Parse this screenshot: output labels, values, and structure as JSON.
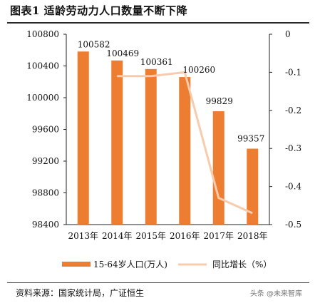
{
  "title": "图表1 适龄劳动力人口数量不断下降",
  "source": "资料来源：国家统计局，广证恒生",
  "watermark": "头条 @未来智库",
  "chart_data": {
    "type": "bar",
    "categories": [
      "2013年",
      "2014年",
      "2015年",
      "2016年",
      "2017年",
      "2018年"
    ],
    "series": [
      {
        "name": "15-64岁人口(万人)",
        "type": "bar",
        "axis": "left",
        "values": [
          100582,
          100469,
          100361,
          100260,
          99829,
          99357
        ]
      },
      {
        "name": "同比增长（%）",
        "type": "line",
        "axis": "right",
        "values": [
          null,
          -0.11,
          -0.11,
          -0.1,
          -0.43,
          -0.47
        ]
      }
    ],
    "ylim_left": [
      98400,
      100800
    ],
    "yticks_left": [
      "100800",
      "100400",
      "100000",
      "99600",
      "99200",
      "98800",
      "98400"
    ],
    "ylim_right": [
      -0.5,
      0
    ],
    "yticks_right": [
      "0",
      "-0.1",
      "-0.2",
      "-0.3",
      "-0.4",
      "-0.5"
    ],
    "data_labels": [
      "100582",
      "100469",
      "100361",
      "100260",
      "99829",
      "99357"
    ],
    "legend_position": "bottom",
    "colors": {
      "bar": "#ED7D31",
      "line": "#F8CBAD"
    },
    "grid": false
  }
}
